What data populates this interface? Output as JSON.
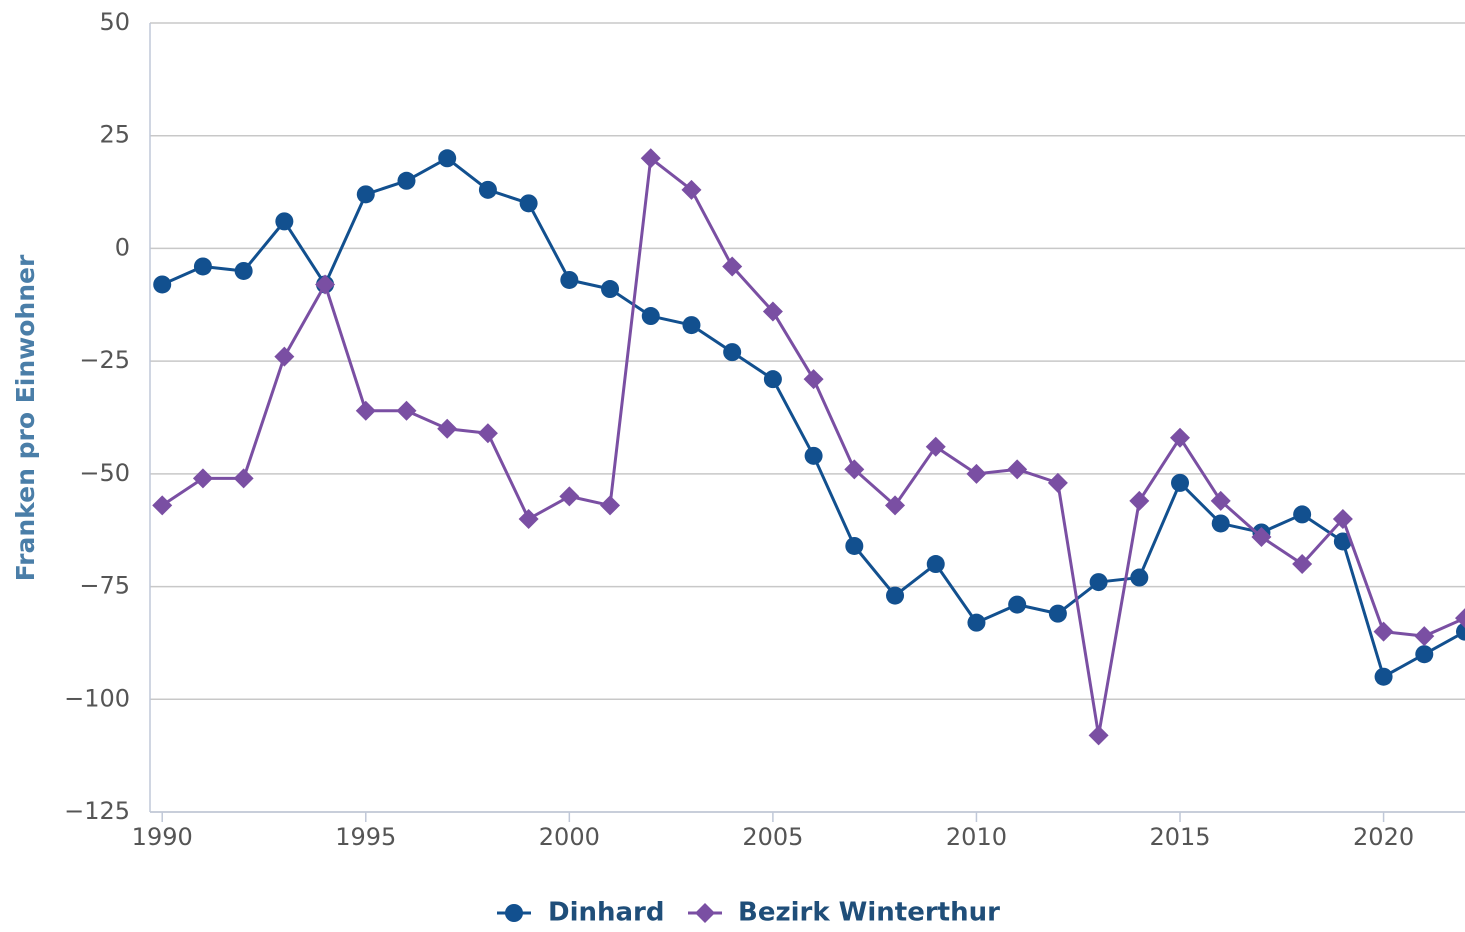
{
  "chart_data": {
    "type": "line",
    "y_label": "Franken pro Einwohner",
    "x": [
      1990,
      1991,
      1992,
      1993,
      1994,
      1995,
      1996,
      1997,
      1998,
      1999,
      2000,
      2001,
      2002,
      2003,
      2004,
      2005,
      2006,
      2007,
      2008,
      2009,
      2010,
      2011,
      2012,
      2013,
      2014,
      2015,
      2016,
      2017,
      2018,
      2019,
      2020,
      2021,
      2022
    ],
    "series": [
      {
        "name": "Dinhard",
        "color": "#12508f",
        "marker": "circle",
        "values": [
          -8,
          -4,
          -5,
          6,
          -8,
          12,
          15,
          20,
          13,
          10,
          -7,
          -9,
          -15,
          -17,
          -23,
          -29,
          -46,
          -66,
          -77,
          -70,
          -83,
          -79,
          -81,
          -74,
          -73,
          -52,
          -61,
          -63,
          -59,
          -65,
          -95,
          -90,
          -85
        ]
      },
      {
        "name": "Bezirk Winterthur",
        "color": "#7a4fa3",
        "marker": "diamond",
        "values": [
          -57,
          -51,
          -51,
          -24,
          -8,
          -36,
          -36,
          -40,
          -41,
          -60,
          -55,
          -57,
          20,
          13,
          -4,
          -14,
          -29,
          -49,
          -57,
          -44,
          -50,
          -49,
          -52,
          -108,
          -56,
          -42,
          -56,
          -64,
          -70,
          -60,
          -85,
          -86,
          -82
        ]
      }
    ],
    "xlim": [
      1989.7,
      2022
    ],
    "xticks": [
      1990,
      1995,
      2000,
      2005,
      2010,
      2015,
      2020
    ],
    "ylim": [
      -125,
      50
    ],
    "yticks": [
      {
        "value": -125,
        "label": "−125"
      },
      {
        "value": -100,
        "label": "−100"
      },
      {
        "value": -75,
        "label": "−75"
      },
      {
        "value": -50,
        "label": "−50"
      },
      {
        "value": -25,
        "label": "−25"
      },
      0,
      25,
      50
    ],
    "grid": true,
    "legend": "bottom"
  }
}
